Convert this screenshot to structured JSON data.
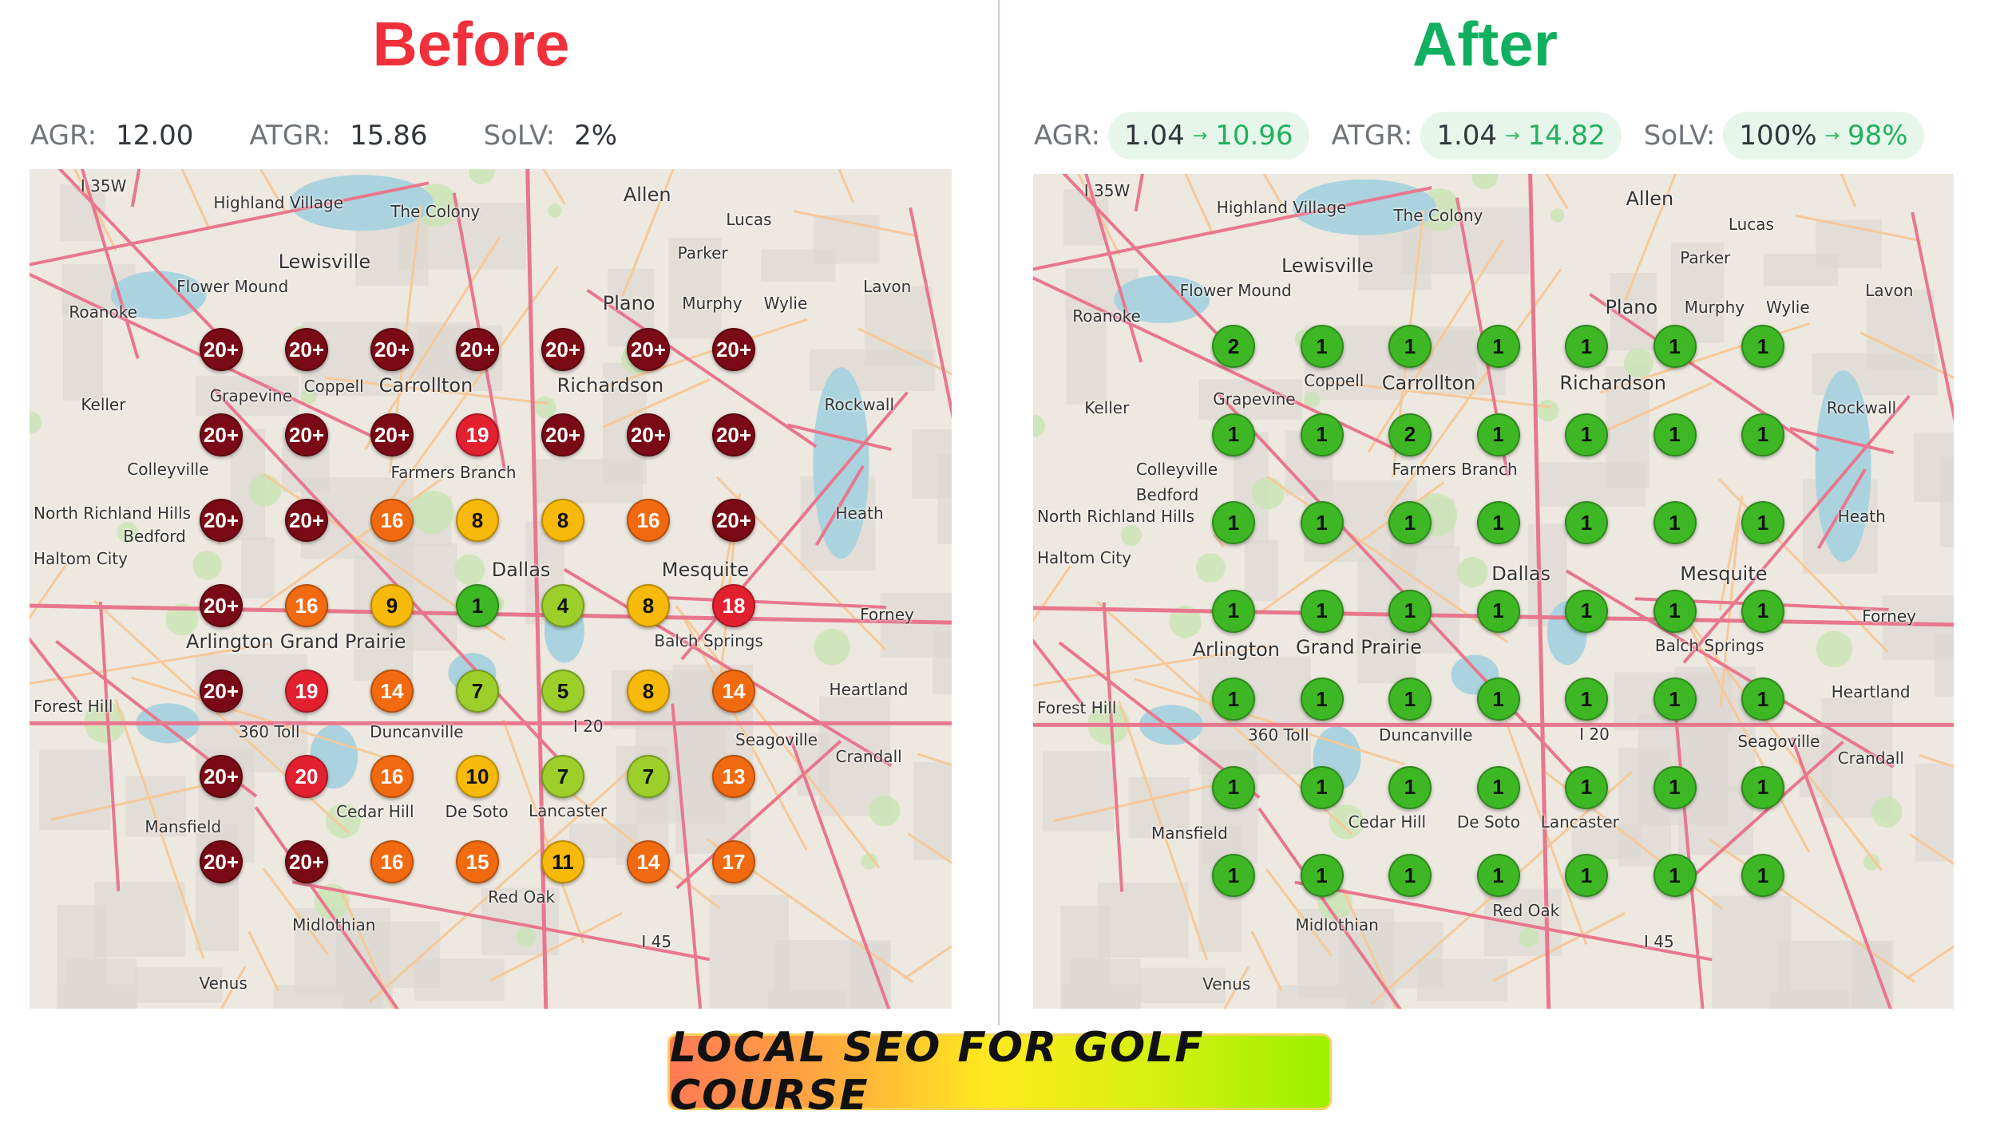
{
  "before": {
    "title": "Before",
    "metrics": {
      "agr_label": "AGR:",
      "agr": "12.00",
      "atgr_label": "ATGR:",
      "atgr": "15.86",
      "solv_label": "SoLV:",
      "solv": "2%"
    },
    "grid": [
      [
        "20+",
        "20+",
        "20+",
        "20+",
        "20+",
        "20+",
        "20+"
      ],
      [
        "20+",
        "20+",
        "20+",
        "19",
        "20+",
        "20+",
        "20+"
      ],
      [
        "20+",
        "20+",
        "16",
        "8",
        "8",
        "16",
        "20+"
      ],
      [
        "20+",
        "16",
        "9",
        "1",
        "4",
        "8",
        "18"
      ],
      [
        "20+",
        "19",
        "14",
        "7",
        "5",
        "8",
        "14"
      ],
      [
        "20+",
        "20",
        "16",
        "10",
        "7",
        "7",
        "13"
      ],
      [
        "20+",
        "20+",
        "16",
        "15",
        "11",
        "14",
        "17"
      ]
    ]
  },
  "after": {
    "title": "After",
    "metrics": {
      "agr_label": "AGR:",
      "agr_old": "1.04",
      "agr_new": "10.96",
      "atgr_label": "ATGR:",
      "atgr_old": "1.04",
      "atgr_new": "14.82",
      "solv_label": "SoLV:",
      "solv_old": "100%",
      "solv_new": "98%",
      "arrow": "→"
    },
    "grid": [
      [
        "2",
        "1",
        "1",
        "1",
        "1",
        "1",
        "1"
      ],
      [
        "1",
        "1",
        "2",
        "1",
        "1",
        "1",
        "1"
      ],
      [
        "1",
        "1",
        "1",
        "1",
        "1",
        "1",
        "1"
      ],
      [
        "1",
        "1",
        "1",
        "1",
        "1",
        "1",
        "1"
      ],
      [
        "1",
        "1",
        "1",
        "1",
        "1",
        "1",
        "1"
      ],
      [
        "1",
        "1",
        "1",
        "1",
        "1",
        "1",
        "1"
      ],
      [
        "1",
        "1",
        "1",
        "1",
        "1",
        "1",
        "1"
      ]
    ]
  },
  "map_labels": [
    "Allen",
    "Lewisville",
    "Plano",
    "Carrollton",
    "Richardson",
    "Dallas",
    "Arlington",
    "Grand Prairie",
    "Mesquite",
    "Lucas",
    "Parker",
    "Murphy",
    "Wylie",
    "Lavon",
    "Rockwall",
    "Flower Mound",
    "Highland Village",
    "The Colony",
    "Roanoke",
    "Keller",
    "Grapevine",
    "Coppell",
    "Farmers Branch",
    "Colleyville",
    "North Richland Hills",
    "Bedford",
    "Haltom City",
    "Forest Hill",
    "Duncanville",
    "Cedar Hill",
    "De Soto",
    "Lancaster",
    "Balch Springs",
    "Seagoville",
    "Heartland",
    "Crandall",
    "Forney",
    "Heath",
    "Mansfield",
    "Midlothian",
    "Red Oak",
    "Venus",
    "360 Toll",
    "I 20",
    "I 45",
    "I 35W"
  ],
  "marker_colors": {
    "top": "#7a0a16",
    "red": "#e22030",
    "orange": "#f26a10",
    "amber": "#f7b90a",
    "lime": "#9ccf2a",
    "green": "#3db824"
  },
  "banner": {
    "text": "LOCAL SEO FOR GOLF COURSE"
  }
}
